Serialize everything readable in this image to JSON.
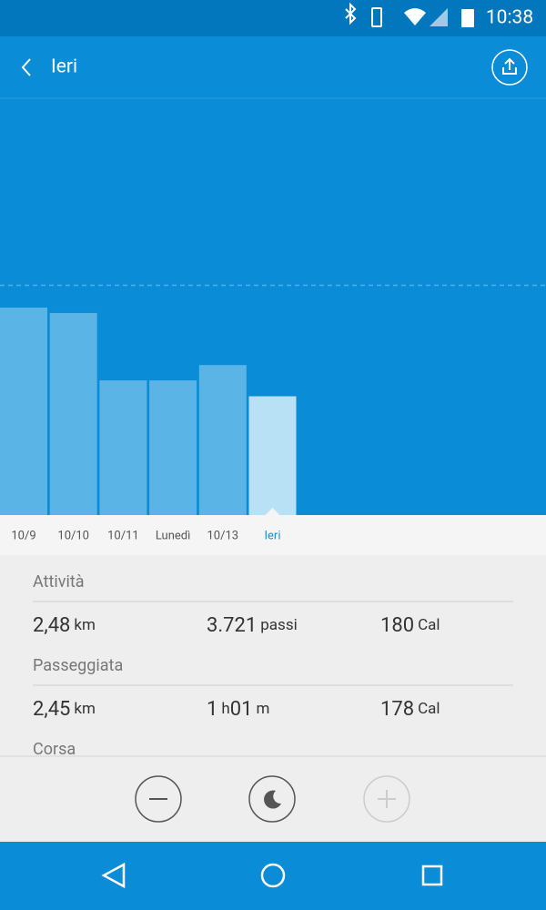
{
  "status_bar": {
    "time": "10:38"
  },
  "header": {
    "title": "Ieri"
  },
  "chart_data": {
    "type": "bar",
    "categories": [
      "10/9",
      "10/10",
      "10/11",
      "Lunedì",
      "10/13",
      "Ieri"
    ],
    "values": [
      6500,
      6330,
      4220,
      4220,
      4700,
      3721
    ],
    "color": "#5ab4e6",
    "highlight_index": 5,
    "highlight_color": "#b9e1f6",
    "label_color": "#555555",
    "highlight_label_color": "#1e8fd5",
    "ylim": [
      0,
      13000
    ],
    "goal_line": 7200
  },
  "sections": [
    {
      "title": "Attività",
      "items": [
        [
          "2,48",
          "km"
        ],
        [
          "3.721",
          "passi"
        ],
        [
          "180",
          "Cal"
        ]
      ]
    },
    {
      "title": "Passeggiata",
      "items": [
        [
          "2,45",
          "km"
        ],
        [
          "1",
          "h",
          "01",
          "m"
        ],
        [
          "178",
          "Cal"
        ]
      ]
    },
    {
      "title": "Corsa",
      "items": []
    }
  ]
}
